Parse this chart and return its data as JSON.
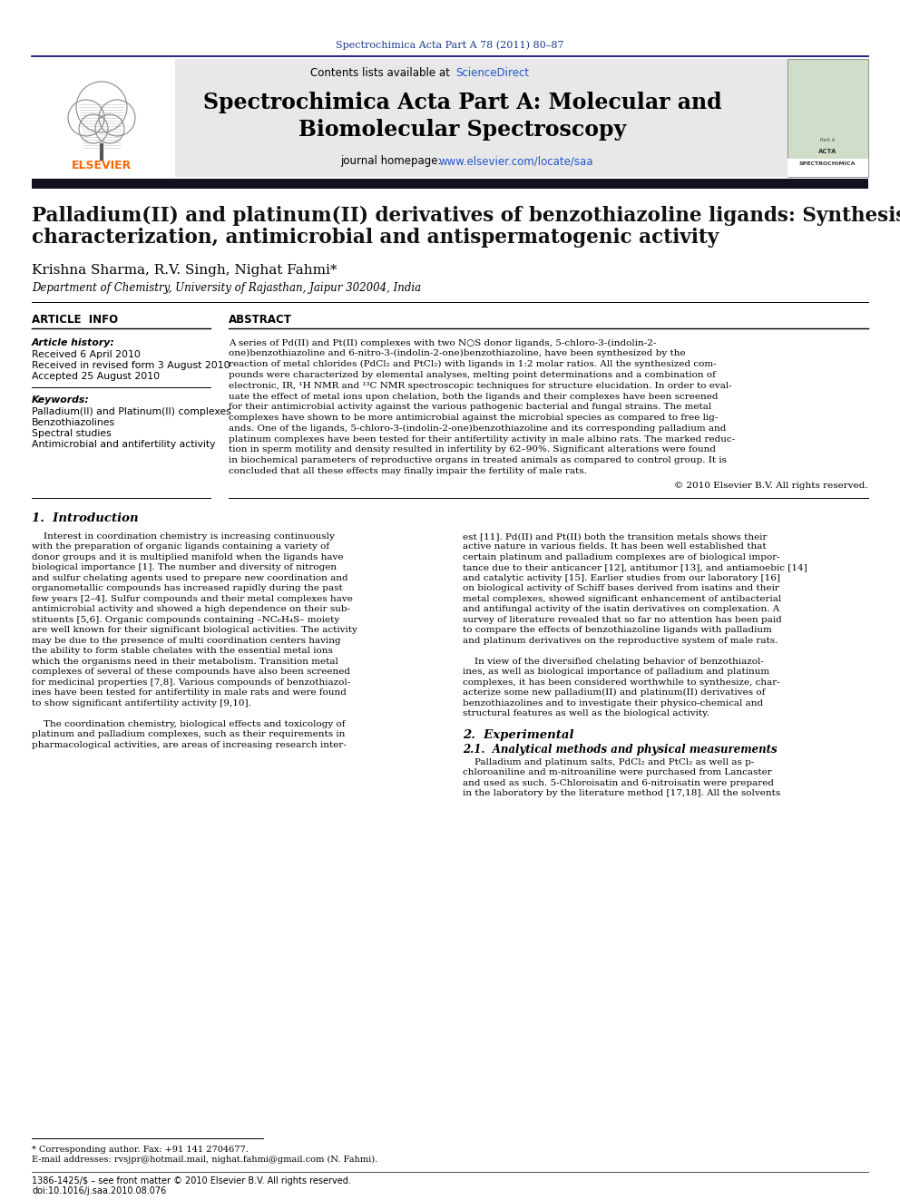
{
  "page_title": "Spectrochimica Acta Part A 78 (2011) 80–87",
  "journal_name": "Spectrochimica Acta Part A: Molecular and\nBiomolecular Spectroscopy",
  "journal_homepage": "journal homepage: www.elsevier.com/locate/saa",
  "contents_line": "Contents lists available at ScienceDirect",
  "paper_title_line1": "Palladium(II) and platinum(II) derivatives of benzothiazoline ligands: Synthesis,",
  "paper_title_line2": "characterization, antimicrobial and antispermatogenic activity",
  "authors": "Krishna Sharma, R.V. Singh, Nighat Fahmi*",
  "affiliation": "Department of Chemistry, University of Rajasthan, Jaipur 302004, India",
  "article_info_header": "ARTICLE  INFO",
  "abstract_header": "ABSTRACT",
  "article_history_label": "Article history:",
  "received1": "Received 6 April 2010",
  "received2": "Received in revised form 3 August 2010",
  "accepted": "Accepted 25 August 2010",
  "keywords_label": "Keywords:",
  "keyword1": "Palladium(II) and Platinum(II) complexes",
  "keyword2": "Benzothiazolines",
  "keyword3": "Spectral studies",
  "keyword4": "Antimicrobial and antifertility activity",
  "abstract_lines": [
    "A series of Pd(II) and Pt(II) complexes with two N○S donor ligands, 5-chloro-3-(indolin-2-",
    "one)benzothiazoline and 6-nitro-3-(indolin-2-one)benzothiazoline, have been synthesized by the",
    "reaction of metal chlorides (PdCl₂ and PtCl₂) with ligands in 1:2 molar ratios. All the synthesized com-",
    "pounds were characterized by elemental analyses, melting point determinations and a combination of",
    "electronic, IR, ¹H NMR and ¹³C NMR spectroscopic techniques for structure elucidation. In order to eval-",
    "uate the effect of metal ions upon chelation, both the ligands and their complexes have been screened",
    "for their antimicrobial activity against the various pathogenic bacterial and fungal strains. The metal",
    "complexes have shown to be more antimicrobial against the microbial species as compared to free lig-",
    "ands. One of the ligands, 5-chloro-3-(indolin-2-one)benzothiazoline and its corresponding palladium and",
    "platinum complexes have been tested for their antifertility activity in male albino rats. The marked reduc-",
    "tion in sperm motility and density resulted in infertility by 62–90%. Significant alterations were found",
    "in biochemical parameters of reproductive organs in treated animals as compared to control group. It is",
    "concluded that all these effects may finally impair the fertility of male rats."
  ],
  "copyright": "© 2010 Elsevier B.V. All rights reserved.",
  "intro_header": "1.  Introduction",
  "intro_left_lines": [
    "    Interest in coordination chemistry is increasing continuously",
    "with the preparation of organic ligands containing a variety of",
    "donor groups and it is multiplied manifold when the ligands have",
    "biological importance [1]. The number and diversity of nitrogen",
    "and sulfur chelating agents used to prepare new coordination and",
    "organometallic compounds has increased rapidly during the past",
    "few years [2–4]. Sulfur compounds and their metal complexes have",
    "antimicrobial activity and showed a high dependence on their sub-",
    "stituents [5,6]. Organic compounds containing –NC₆H₄S– moiety",
    "are well known for their significant biological activities. The activity",
    "may be due to the presence of multi coordination centers having",
    "the ability to form stable chelates with the essential metal ions",
    "which the organisms need in their metabolism. Transition metal",
    "complexes of several of these compounds have also been screened",
    "for medicinal properties [7,8]. Various compounds of benzothiazol-",
    "ines have been tested for antifertility in male rats and were found",
    "to show significant antifertility activity [9,10].",
    "",
    "    The coordination chemistry, biological effects and toxicology of",
    "platinum and palladium complexes, such as their requirements in",
    "pharmacological activities, are areas of increasing research inter-"
  ],
  "intro_right_lines": [
    "est [11]. Pd(II) and Pt(II) both the transition metals shows their",
    "active nature in various fields. It has been well established that",
    "certain platinum and palladium complexes are of biological impor-",
    "tance due to their anticancer [12], antitumor [13], and antiamoebic [14]",
    "and catalytic activity [15]. Earlier studies from our laboratory [16]",
    "on biological activity of Schiff bases derived from isatins and their",
    "metal complexes, showed significant enhancement of antibacterial",
    "and antifungal activity of the isatin derivatives on complexation. A",
    "survey of literature revealed that so far no attention has been paid",
    "to compare the effects of benzothiazoline ligands with palladium",
    "and platinum derivatives on the reproductive system of male rats.",
    "",
    "    In view of the diversified chelating behavior of benzothiazol-",
    "ines, as well as biological importance of palladium and platinum",
    "complexes, it has been considered worthwhile to synthesize, char-",
    "acterize some new palladium(II) and platinum(II) derivatives of",
    "benzothiazolines and to investigate their physico-chemical and",
    "structural features as well as the biological activity."
  ],
  "section2_header": "2.  Experimental",
  "section21_header": "2.1.  Analytical methods and physical measurements",
  "section21_lines": [
    "    Palladium and platinum salts, PdCl₂ and PtCl₂ as well as p-",
    "chloroaniline and m-nitroaniline were purchased from Lancaster",
    "and used as such. 5-Chloroisatin and 6-nitroisatin were prepared",
    "in the laboratory by the literature method [17,18]. All the solvents"
  ],
  "footnote_star": "* Corresponding author. Fax: +91 141 2704677.",
  "footnote_email": "E-mail addresses: rvsjpr@hotmail.mail, nighat.fahmi@gmail.com (N. Fahmi).",
  "footer_issn": "1386-1425/$ – see front matter © 2010 Elsevier B.V. All rights reserved.",
  "footer_doi": "doi:10.1016/j.saa.2010.08.076",
  "bg_color": "#ffffff",
  "header_bg": "#e8e8e8",
  "dark_bar_color": "#111122",
  "blue_color": "#1a3a8f",
  "link_color": "#2255cc",
  "text_color": "#000000"
}
